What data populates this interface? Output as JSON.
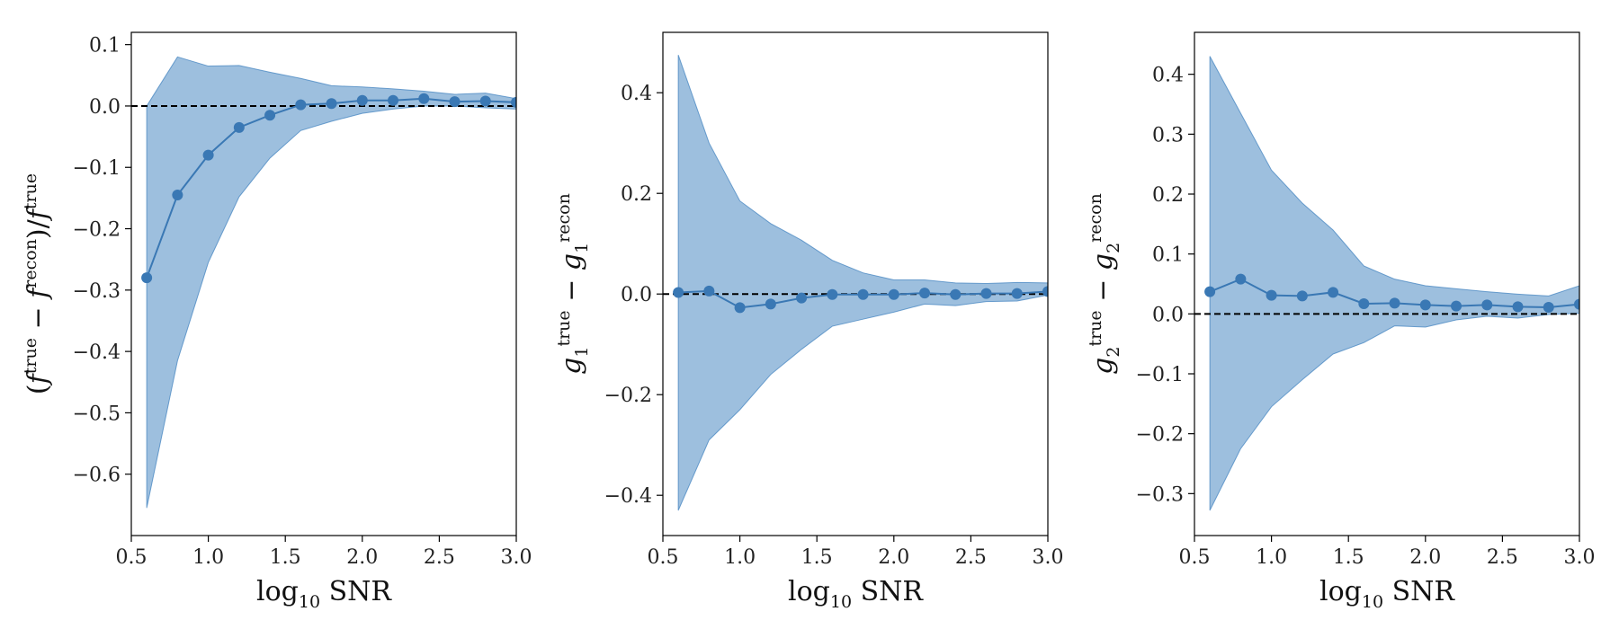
{
  "figure": {
    "style": {
      "fill_color": "#3c7fbd",
      "fill_opacity": 0.5,
      "line_color": "#3a78b4",
      "zero_line_color": "#000000"
    }
  },
  "chart_data": [
    {
      "type": "line",
      "xlabel": {
        "parts": [
          "log",
          "10",
          " SNR"
        ]
      },
      "ylabel": {
        "text": "(f^true − f^recon)/f^true",
        "parts": [
          "(",
          "f",
          "true",
          " − ",
          "f",
          "recon",
          ")/",
          "f",
          "true"
        ]
      },
      "xlim": [
        0.5,
        3.0
      ],
      "ylim": [
        -0.7,
        0.12
      ],
      "xticks": [
        "0.5",
        "1.0",
        "1.5",
        "2.0",
        "2.5",
        "3.0"
      ],
      "yticks": [
        "−0.6",
        "−0.5",
        "−0.4",
        "−0.3",
        "−0.2",
        "−0.1",
        "0.0",
        "0.1"
      ],
      "ytick_values": [
        -0.6,
        -0.5,
        -0.4,
        -0.3,
        -0.2,
        -0.1,
        0.0,
        0.1
      ],
      "reference_line_y": 0.0,
      "grid": false,
      "series": [
        {
          "x": [
            0.6,
            0.8,
            1.0,
            1.2,
            1.4,
            1.6,
            1.8,
            2.0,
            2.2,
            2.4,
            2.6,
            2.8,
            3.0
          ],
          "y": [
            -0.28,
            -0.145,
            -0.08,
            -0.035,
            -0.015,
            0.002,
            0.004,
            0.009,
            0.009,
            0.012,
            0.007,
            0.008,
            0.006
          ],
          "upper": [
            0.0,
            0.08,
            0.065,
            0.066,
            0.055,
            0.045,
            0.033,
            0.031,
            0.028,
            0.024,
            0.019,
            0.021,
            0.012
          ],
          "lower": [
            -0.655,
            -0.415,
            -0.255,
            -0.148,
            -0.085,
            -0.04,
            -0.025,
            -0.012,
            -0.005,
            0.0,
            0.0,
            -0.003,
            -0.005
          ]
        }
      ]
    },
    {
      "type": "line",
      "xlabel": {
        "parts": [
          "log",
          "10",
          " SNR"
        ]
      },
      "ylabel": {
        "text": "g_1^true − g_1^recon",
        "parts": [
          "g",
          "1",
          "true",
          " − ",
          "g",
          "1",
          "recon"
        ]
      },
      "xlim": [
        0.5,
        3.0
      ],
      "ylim": [
        -0.48,
        0.52
      ],
      "xticks": [
        "0.5",
        "1.0",
        "1.5",
        "2.0",
        "2.5",
        "3.0"
      ],
      "yticks": [
        "−0.4",
        "−0.2",
        "0.0",
        "0.2",
        "0.4"
      ],
      "ytick_values": [
        -0.4,
        -0.2,
        0.0,
        0.2,
        0.4
      ],
      "reference_line_y": 0.0,
      "grid": false,
      "series": [
        {
          "x": [
            0.6,
            0.8,
            1.0,
            1.2,
            1.4,
            1.6,
            1.8,
            2.0,
            2.2,
            2.4,
            2.6,
            2.8,
            3.0
          ],
          "y": [
            0.003,
            0.006,
            -0.027,
            -0.02,
            -0.008,
            -0.001,
            -0.001,
            -0.001,
            0.002,
            -0.001,
            0.001,
            0.001,
            0.005
          ],
          "upper": [
            0.475,
            0.3,
            0.185,
            0.14,
            0.107,
            0.067,
            0.042,
            0.028,
            0.028,
            0.022,
            0.021,
            0.023,
            0.022
          ],
          "lower": [
            -0.43,
            -0.29,
            -0.23,
            -0.16,
            -0.11,
            -0.064,
            -0.05,
            -0.036,
            -0.02,
            -0.023,
            -0.015,
            -0.014,
            -0.002
          ]
        }
      ]
    },
    {
      "type": "line",
      "xlabel": {
        "parts": [
          "log",
          "10",
          " SNR"
        ]
      },
      "ylabel": {
        "text": "g_2^true − g_2^recon",
        "parts": [
          "g",
          "2",
          "true",
          " − ",
          "g",
          "2",
          "recon"
        ]
      },
      "xlim": [
        0.5,
        3.0
      ],
      "ylim": [
        -0.37,
        0.47
      ],
      "xticks": [
        "0.5",
        "1.0",
        "1.5",
        "2.0",
        "2.5",
        "3.0"
      ],
      "yticks": [
        "−0.3",
        "−0.2",
        "−0.1",
        "0.0",
        "0.1",
        "0.2",
        "0.3",
        "0.4"
      ],
      "ytick_values": [
        -0.3,
        -0.2,
        -0.1,
        0.0,
        0.1,
        0.2,
        0.3,
        0.4
      ],
      "reference_line_y": 0.0,
      "grid": false,
      "series": [
        {
          "x": [
            0.6,
            0.8,
            1.0,
            1.2,
            1.4,
            1.6,
            1.8,
            2.0,
            2.2,
            2.4,
            2.6,
            2.8,
            3.0
          ],
          "y": [
            0.037,
            0.058,
            0.031,
            0.03,
            0.036,
            0.017,
            0.018,
            0.015,
            0.013,
            0.015,
            0.012,
            0.011,
            0.016
          ],
          "upper": [
            0.43,
            0.335,
            0.24,
            0.185,
            0.14,
            0.08,
            0.058,
            0.047,
            0.042,
            0.037,
            0.033,
            0.03,
            0.047
          ],
          "lower": [
            -0.328,
            -0.225,
            -0.155,
            -0.11,
            -0.067,
            -0.048,
            -0.02,
            -0.022,
            -0.01,
            -0.004,
            -0.007,
            -0.001,
            0.001
          ]
        }
      ]
    }
  ]
}
